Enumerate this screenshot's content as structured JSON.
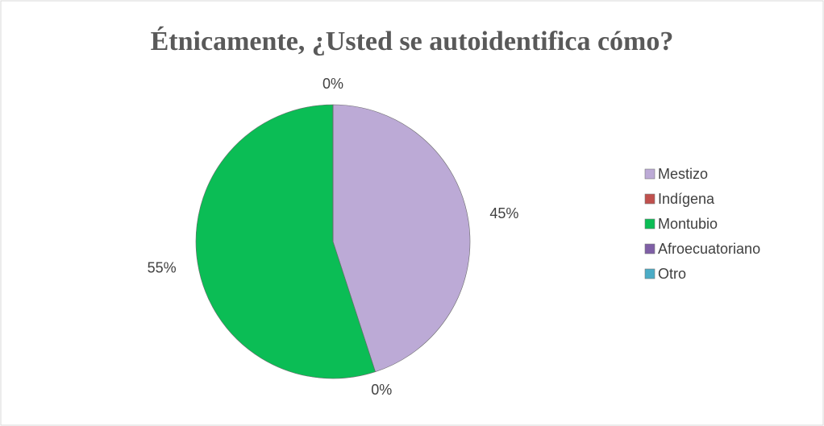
{
  "chart_data": {
    "type": "pie",
    "title": "Étnicamente, ¿Usted se autoidentifica cómo?",
    "categories": [
      "Mestizo",
      "Indígena",
      "Montubio",
      "Afroecuatoriano",
      "Otro"
    ],
    "values": [
      45,
      0,
      55,
      0,
      0
    ],
    "value_labels": [
      "45%",
      "0%",
      "55%",
      "0%",
      null
    ],
    "colors": [
      "#bcaad6",
      "#c0504d",
      "#0bbd55",
      "#7f5fa6",
      "#4bacc6"
    ],
    "legend": "right"
  }
}
